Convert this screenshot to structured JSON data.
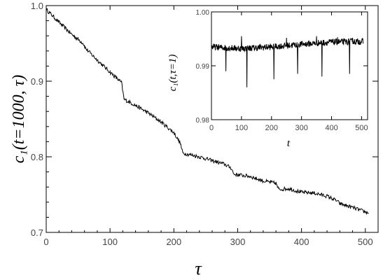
{
  "chart_data": [
    {
      "type": "line",
      "xlabel": "τ",
      "ylabel": "c₁(t=1000, τ)",
      "xlim": [
        0,
        520
      ],
      "ylim": [
        0.7,
        1.0
      ],
      "x_ticks": [
        "0",
        "100",
        "200",
        "300",
        "400",
        "500"
      ],
      "y_ticks": [
        "0.7",
        "0.8",
        "0.9",
        "1.0"
      ],
      "grid": false,
      "series": [
        {
          "x": [
            0,
            20,
            40,
            58,
            62,
            80,
            100,
            118,
            122,
            140,
            160,
            180,
            200,
            210,
            214,
            240,
            260,
            280,
            290,
            294,
            320,
            340,
            360,
            364,
            380,
            400,
            420,
            440,
            455,
            460,
            480,
            500,
            505
          ],
          "y": [
            0.995,
            0.978,
            0.962,
            0.95,
            0.943,
            0.928,
            0.912,
            0.898,
            0.876,
            0.868,
            0.858,
            0.846,
            0.832,
            0.818,
            0.805,
            0.8,
            0.795,
            0.79,
            0.785,
            0.777,
            0.774,
            0.768,
            0.765,
            0.757,
            0.758,
            0.753,
            0.752,
            0.748,
            0.742,
            0.738,
            0.733,
            0.727,
            0.726
          ]
        }
      ]
    },
    {
      "type": "line",
      "xlabel": "t",
      "ylabel": "c₁(t,τ=1)",
      "xlim": [
        0,
        520
      ],
      "ylim": [
        0.98,
        1.0
      ],
      "x_ticks": [
        "0",
        "100",
        "200",
        "300",
        "400",
        "500"
      ],
      "y_ticks": [
        "0.98",
        "0.99",
        "1.00"
      ],
      "grid": false,
      "series": [
        {
          "baseline": [
            [
              0,
              0.9935
            ],
            [
              100,
              0.9932
            ],
            [
              200,
              0.9935
            ],
            [
              300,
              0.994
            ],
            [
              400,
              0.9944
            ],
            [
              505,
              0.9945
            ]
          ],
          "dips": [
            [
              48,
              0.989
            ],
            [
              118,
              0.986
            ],
            [
              208,
              0.9875
            ],
            [
              287,
              0.9885
            ],
            [
              368,
              0.988
            ],
            [
              460,
              0.9885
            ]
          ],
          "spikes": [
            [
              100,
              0.9955
            ],
            [
              250,
              0.9952
            ],
            [
              350,
              0.9955
            ],
            [
              420,
              0.9953
            ],
            [
              470,
              0.9952
            ]
          ]
        }
      ]
    }
  ]
}
